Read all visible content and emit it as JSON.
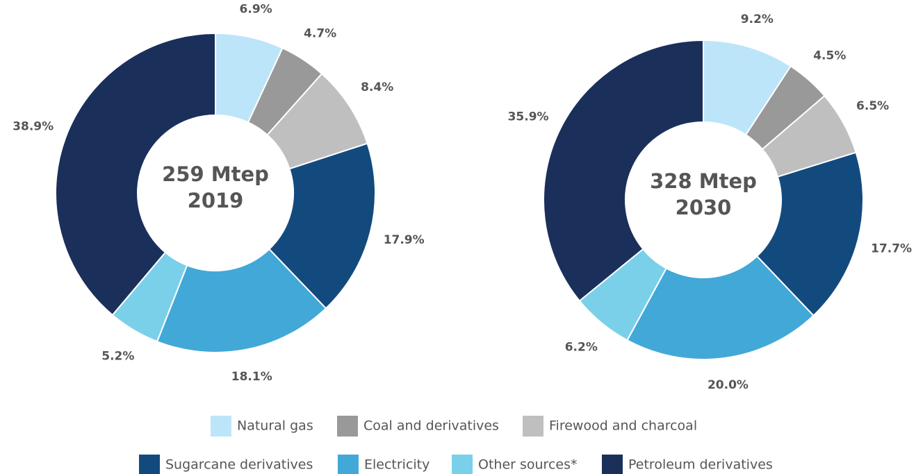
{
  "chart_data": [
    {
      "type": "pie",
      "center_lines": [
        "259 Mtep",
        "2019"
      ],
      "categories": [
        "Natural gas",
        "Coal and derivatives",
        "Firewood and charcoal",
        "Sugarcane derivatives",
        "Electricity",
        "Other sources*",
        "Petroleum derivatives"
      ],
      "colors": [
        "#bde5f9",
        "#999999",
        "#bfbfbf",
        "#134a7e",
        "#42a8d8",
        "#7bd0e9",
        "#1b2f5b"
      ],
      "values": [
        6.9,
        4.7,
        8.4,
        17.9,
        18.1,
        5.2,
        38.9
      ],
      "value_labels": [
        "6.9%",
        "4.7%",
        "8.4%",
        "17.9%",
        "18.1%",
        "5.2%",
        "38.9%"
      ]
    },
    {
      "type": "pie",
      "center_lines": [
        "328 Mtep",
        "2030"
      ],
      "categories": [
        "Natural gas",
        "Coal and derivatives",
        "Firewood and charcoal",
        "Sugarcane derivatives",
        "Electricity",
        "Other sources*",
        "Petroleum derivatives"
      ],
      "colors": [
        "#bde5f9",
        "#999999",
        "#bfbfbf",
        "#134a7e",
        "#42a8d8",
        "#7bd0e9",
        "#1b2f5b"
      ],
      "values": [
        9.2,
        4.5,
        6.5,
        17.7,
        20.0,
        6.2,
        35.9
      ],
      "value_labels": [
        "9.2%",
        "4.5%",
        "6.5%",
        "17.7%",
        "20.0%",
        "6.2%",
        "35.9%"
      ]
    }
  ]
}
